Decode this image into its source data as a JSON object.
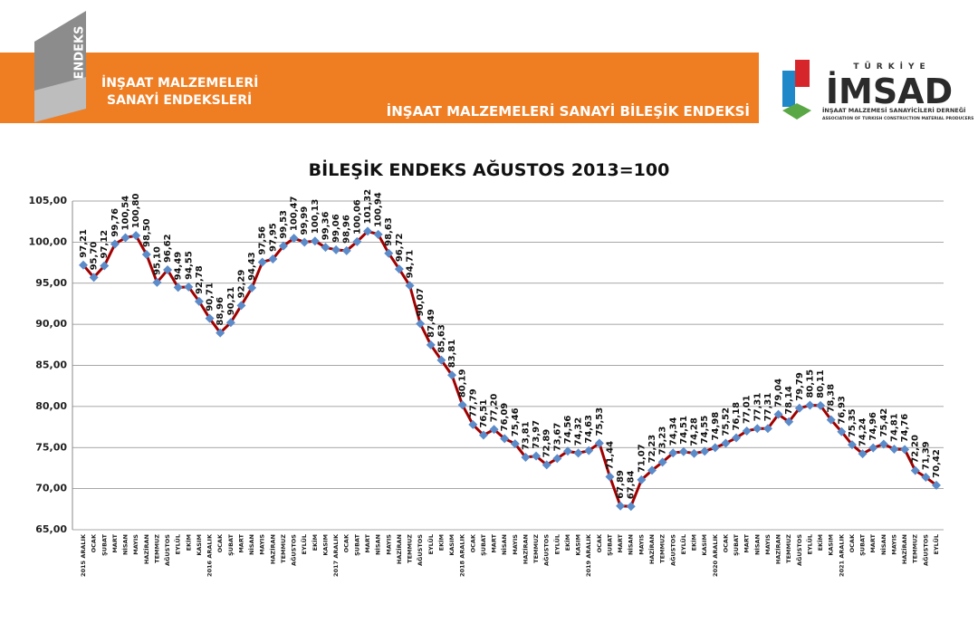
{
  "header": {
    "logo_text": "ENDEKS",
    "brand_line1": "İNŞAAT MALZEMELERİ",
    "brand_line2": "SANAYİ ENDEKSLERİ",
    "section_title": "İNŞAAT MALZEMELERİ SANAYİ BİLEŞİK ENDEKSİ",
    "org_country": "TÜRKİYE",
    "org_name": "İMSAD",
    "org_full": "İNŞAAT MALZEMESİ SANAYİCİLERİ DERNEĞİ",
    "org_en": "ASSOCIATION OF TURKISH CONSTRUCTION MATERIAL PRODUCERS"
  },
  "chart_data": {
    "type": "line",
    "title": "BİLEŞİK ENDEKS AĞUSTOS 2013=100",
    "categories": [
      "2015 ARALIK",
      "OCAK",
      "ŞUBAT",
      "MART",
      "NİSAN",
      "MAYIS",
      "HAZİRAN",
      "TEMMUZ",
      "AĞUSTOS",
      "EYLÜL",
      "EKİM",
      "KASIM",
      "2016 ARALIK",
      "OCAK",
      "ŞUBAT",
      "MART",
      "NİSAN",
      "MAYIS",
      "HAZİRAN",
      "TEMMUZ",
      "AĞUSTOS",
      "EYLÜL",
      "EKİM",
      "KASIM",
      "2017 ARALIK",
      "OCAK",
      "ŞUBAT",
      "MART",
      "NİSAN",
      "MAYIS",
      "HAZİRAN",
      "TEMMUZ",
      "AĞUSTOS",
      "EYLÜL",
      "EKİM",
      "KASIM",
      "2018 ARALIK",
      "OCAK",
      "ŞUBAT",
      "MART",
      "NİSAN",
      "MAYIS",
      "HAZİRAN",
      "TEMMUZ",
      "AĞUSTOS",
      "EYLÜL",
      "EKİM",
      "KASIM",
      "2019 ARALIK",
      "OCAK",
      "ŞUBAT",
      "MART",
      "NİSAN",
      "MAYIS",
      "HAZİRAN",
      "TEMMUZ",
      "AĞUSTOS",
      "EYLÜL",
      "EKİM",
      "KASIM",
      "2020 ARALIK",
      "OCAK",
      "ŞUBAT",
      "MART",
      "NİSAN",
      "MAYIS",
      "HAZİRAN",
      "TEMMUZ",
      "AĞUSTOS",
      "EYLÜL",
      "EKİM",
      "KASIM",
      "2021 ARALIK",
      "OCAK",
      "ŞUBAT",
      "MART",
      "NİSAN",
      "MAYIS",
      "HAZİRAN",
      "TEMMUZ",
      "AĞUSTOS",
      "EYLÜL"
    ],
    "series": [
      {
        "color": "#a00000",
        "marker_color": "#5b8bc9",
        "values": [
          97.21,
          95.7,
          97.12,
          99.76,
          100.54,
          100.8,
          98.5,
          95.1,
          96.62,
          94.49,
          94.55,
          92.78,
          90.71,
          88.96,
          90.21,
          92.29,
          94.43,
          97.56,
          97.95,
          99.53,
          100.47,
          99.99,
          100.13,
          99.36,
          99.06,
          98.96,
          100.06,
          101.32,
          100.94,
          98.63,
          96.72,
          94.71,
          90.07,
          87.49,
          85.63,
          83.81,
          80.19,
          77.79,
          76.51,
          77.2,
          76.09,
          75.46,
          73.81,
          73.97,
          72.89,
          73.67,
          74.56,
          74.32,
          74.63,
          75.53,
          71.44,
          67.89,
          67.84,
          71.07,
          72.23,
          73.23,
          74.34,
          74.51,
          74.28,
          74.55,
          74.98,
          75.52,
          76.18,
          77.01,
          77.31,
          77.31,
          79.04,
          78.14,
          79.79,
          80.15,
          80.11,
          78.38,
          76.93,
          75.35,
          74.24,
          74.96,
          75.42,
          74.81,
          74.76,
          72.2,
          71.39,
          70.42
        ],
        "value_labels": [
          "97,21",
          "95,70",
          "97,12",
          "99,76",
          "100,54",
          "100,80",
          "98,50",
          "95,10",
          "96,62",
          "94,49",
          "94,55",
          "92,78",
          "90,71",
          "88,96",
          "90,21",
          "92,29",
          "94,43",
          "97,56",
          "97,95",
          "99,53",
          "100,47",
          "99,99",
          "100,13",
          "99,36",
          "99,06",
          "98,96",
          "100,06",
          "101,32",
          "100,94",
          "98,63",
          "96,72",
          "94,71",
          "90,07",
          "87,49",
          "85,63",
          "83,81",
          "80,19",
          "77,79",
          "76,51",
          "77,20",
          "76,09",
          "75,46",
          "73,81",
          "73,97",
          "72,89",
          "73,67",
          "74,56",
          "74,32",
          "74,63",
          "75,53",
          "71,44",
          "67,89",
          "67,84",
          "71,07",
          "72,23",
          "73,23",
          "74,34",
          "74,51",
          "74,28",
          "74,55",
          "74,98",
          "75,52",
          "76,18",
          "77,01",
          "77,31",
          "77,31",
          "79,04",
          "78,14",
          "79,79",
          "80,15",
          "80,11",
          "78,38",
          "76,93",
          "75,35",
          "74,24",
          "74,96",
          "75,42",
          "74,81",
          "74,76",
          "72,20",
          "71,39",
          "70,42"
        ]
      }
    ],
    "ylim": [
      65,
      105
    ],
    "yticks": [
      {
        "value": 65,
        "label": "65,00"
      },
      {
        "value": 70,
        "label": "70,00"
      },
      {
        "value": 75,
        "label": "75,00"
      },
      {
        "value": 80,
        "label": "80,00"
      },
      {
        "value": 85,
        "label": "85,00"
      },
      {
        "value": 90,
        "label": "90,00"
      },
      {
        "value": 95,
        "label": "95,00"
      },
      {
        "value": 100,
        "label": "100,00"
      },
      {
        "value": 105,
        "label": "105,00"
      }
    ],
    "grid": true
  }
}
